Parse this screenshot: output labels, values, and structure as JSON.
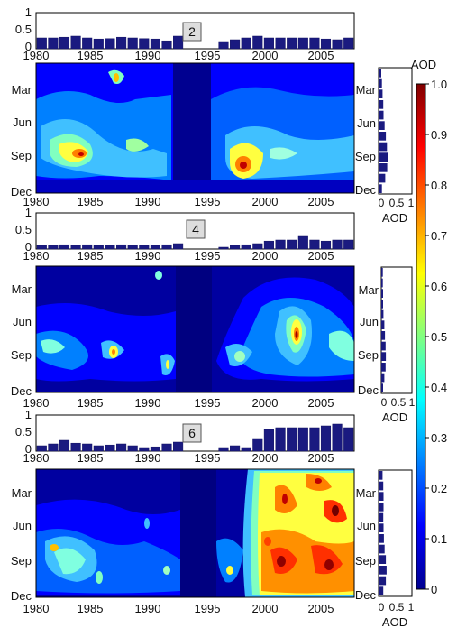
{
  "colorbar": {
    "title": "AOD",
    "ticks": [
      "0",
      "0.1",
      "0.2",
      "0.3",
      "0.4",
      "0.5",
      "0.6",
      "0.7",
      "0.8",
      "0.9",
      "1.0"
    ],
    "range": [
      0,
      1
    ],
    "colors": [
      "#00008f",
      "#0000ff",
      "#0080ff",
      "#00ffff",
      "#80ff80",
      "#ffff00",
      "#ff8000",
      "#ff0000",
      "#800000"
    ]
  },
  "side_xlabel": "AOD",
  "chart_data": [
    {
      "type": "bar",
      "panel_label": "2",
      "x": [
        1980,
        1981,
        1982,
        1983,
        1984,
        1985,
        1986,
        1987,
        1988,
        1989,
        1990,
        1991,
        1992,
        1993,
        1994,
        1995,
        1996,
        1997,
        1998,
        1999,
        2000,
        2001,
        2002,
        2003,
        2004,
        2005,
        2006,
        2007
      ],
      "values": [
        0.3,
        0.3,
        0.32,
        0.35,
        0.3,
        0.27,
        0.28,
        0.32,
        0.3,
        0.28,
        0.27,
        0.22,
        0.35,
        null,
        null,
        null,
        0.2,
        0.25,
        0.3,
        0.35,
        0.3,
        0.3,
        0.3,
        0.3,
        0.3,
        0.27,
        0.25,
        0.3
      ],
      "ylim": [
        0,
        1
      ],
      "yticks": [
        "0",
        "0.5",
        "1"
      ],
      "xticks": [
        "1980",
        "1985",
        "1990",
        "1995",
        "2000",
        "2005"
      ]
    },
    {
      "type": "heatmap",
      "yticks": [
        "Mar",
        "Jun",
        "Sep",
        "Dec"
      ],
      "xticks": [
        "1980",
        "1985",
        "1990",
        "1995",
        "2000",
        "2005"
      ],
      "note": "contour of monthly AOD by year",
      "month_means": [
        0.08,
        0.1,
        0.12,
        0.14,
        0.15,
        0.18,
        0.22,
        0.25,
        0.28,
        0.26,
        0.2,
        0.1
      ]
    },
    {
      "type": "bar",
      "panel_label": "4",
      "x": [
        1980,
        1981,
        1982,
        1983,
        1984,
        1985,
        1986,
        1987,
        1988,
        1989,
        1990,
        1991,
        1992,
        1993,
        1994,
        1995,
        1996,
        1997,
        1998,
        1999,
        2000,
        2001,
        2002,
        2003,
        2004,
        2005,
        2006,
        2007
      ],
      "values": [
        0.1,
        0.1,
        0.12,
        0.1,
        0.12,
        0.1,
        0.1,
        0.12,
        0.1,
        0.1,
        0.1,
        0.12,
        0.15,
        null,
        null,
        null,
        0.05,
        0.1,
        0.12,
        0.15,
        0.22,
        0.25,
        0.25,
        0.35,
        0.25,
        0.22,
        0.25,
        0.25
      ],
      "ylim": [
        0,
        1
      ],
      "yticks": [
        "0",
        "0.5",
        "1"
      ],
      "xticks": [
        "1980",
        "1985",
        "1990",
        "1995",
        "2000",
        "2005"
      ]
    },
    {
      "type": "heatmap",
      "yticks": [
        "Mar",
        "Jun",
        "Sep",
        "Dec"
      ],
      "xticks": [
        "1980",
        "1985",
        "1990",
        "1995",
        "2000",
        "2005"
      ],
      "note": "contour of monthly AOD by year",
      "month_means": [
        0.05,
        0.05,
        0.06,
        0.06,
        0.07,
        0.1,
        0.12,
        0.14,
        0.15,
        0.14,
        0.1,
        0.06
      ]
    },
    {
      "type": "bar",
      "panel_label": "6",
      "x": [
        1980,
        1981,
        1982,
        1983,
        1984,
        1985,
        1986,
        1987,
        1988,
        1989,
        1990,
        1991,
        1992,
        1993,
        1994,
        1995,
        1996,
        1997,
        1998,
        1999,
        2000,
        2001,
        2002,
        2003,
        2004,
        2005,
        2006,
        2007
      ],
      "values": [
        0.15,
        0.2,
        0.3,
        0.22,
        0.2,
        0.15,
        0.17,
        0.2,
        0.15,
        0.1,
        0.12,
        0.2,
        0.25,
        null,
        null,
        null,
        0.1,
        0.15,
        0.1,
        0.35,
        0.6,
        0.65,
        0.65,
        0.65,
        0.65,
        0.7,
        0.75,
        0.65
      ],
      "ylim": [
        0,
        1
      ],
      "yticks": [
        "0",
        "0.5",
        "1"
      ],
      "xticks": [
        "1980",
        "1985",
        "1990",
        "1995",
        "2000",
        "2005"
      ]
    },
    {
      "type": "heatmap",
      "yticks": [
        "Mar",
        "Jun",
        "Sep",
        "Dec"
      ],
      "xticks": [
        "1980",
        "1985",
        "1990",
        "1995",
        "2000",
        "2005"
      ],
      "note": "contour of monthly AOD by year",
      "month_means": [
        0.12,
        0.14,
        0.15,
        0.15,
        0.14,
        0.15,
        0.16,
        0.18,
        0.22,
        0.24,
        0.22,
        0.14
      ]
    }
  ]
}
